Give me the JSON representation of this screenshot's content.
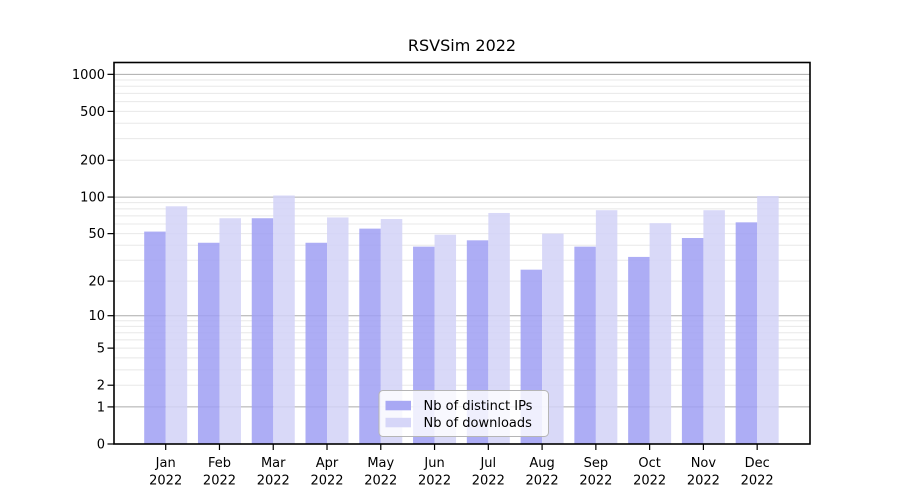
{
  "title": "RSVSim 2022",
  "chart_data": {
    "type": "bar",
    "title": "RSVSim 2022",
    "scale": "log10(value+1)",
    "grid": "on",
    "categories": [
      "Jan",
      "Feb",
      "Mar",
      "Apr",
      "May",
      "Jun",
      "Jul",
      "Aug",
      "Sep",
      "Oct",
      "Nov",
      "Dec"
    ],
    "category_year_line": "2022",
    "series": [
      {
        "name": "Nb of distinct IPs",
        "color": "#9f9ff3",
        "values": [
          52,
          42,
          67,
          42,
          55,
          39,
          44,
          25,
          39,
          32,
          46,
          62
        ]
      },
      {
        "name": "Nb of downloads",
        "color": "#d2d2f7",
        "values": [
          84,
          67,
          103,
          68,
          66,
          49,
          74,
          50,
          78,
          61,
          78,
          102
        ]
      }
    ],
    "y_tick_labels": [
      "0",
      "1",
      "2",
      "5",
      "10",
      "20",
      "50",
      "100",
      "200",
      "500",
      "1000"
    ],
    "y_tick_values": [
      0,
      1,
      2,
      5,
      10,
      20,
      50,
      100,
      200,
      500,
      1000
    ],
    "major_grid_values": [
      1,
      10,
      100,
      1000
    ],
    "ylim": [
      0,
      1230
    ],
    "legend_position": "bottom-center-inside",
    "xlabel": "",
    "ylabel": ""
  },
  "legend": {
    "items": [
      {
        "label": "Nb of distinct IPs",
        "color": "#9f9ff3"
      },
      {
        "label": "Nb of downloads",
        "color": "#d2d2f7"
      }
    ]
  },
  "colors": {
    "background": "#ffffff",
    "bar_distinct_ips": "#9f9ff3",
    "bar_downloads": "#d2d2f7",
    "major_grid": "#ababab",
    "minor_grid": "#e8e8e8",
    "spine": "#000000",
    "legend_border": "#b5b5b5"
  }
}
